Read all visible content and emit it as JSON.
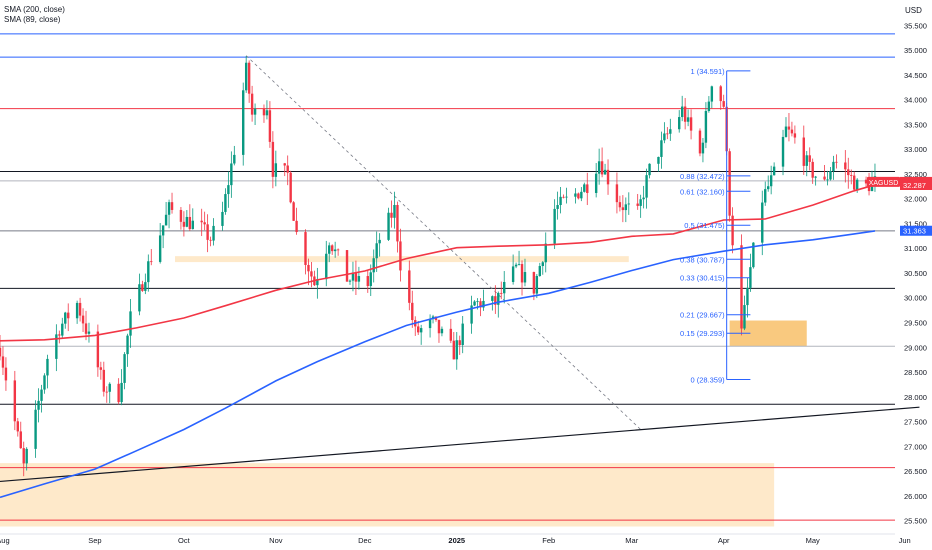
{
  "legend": [
    {
      "label": "SMA (200, close)"
    },
    {
      "label": "SMA (89, close)"
    }
  ],
  "currency": "USD",
  "colors": {
    "up": "#089981",
    "down": "#f23645",
    "sma200": "#2962ff",
    "sma89": "#f23645",
    "fib": "#2962ff",
    "zone": "#fde2b8",
    "zone_strong": "#f8c068",
    "symbol_badge": "#f23645",
    "sma200_badge": "#2962ff"
  },
  "chart_data": {
    "type": "candlestick",
    "symbol": "XAGUSD",
    "y_axis": {
      "min": 25.36,
      "max": 35.72,
      "ticks": [
        "25.500",
        "26.000",
        "26.500",
        "27.000",
        "27.500",
        "28.000",
        "28.500",
        "29.000",
        "29.500",
        "30.000",
        "30.500",
        "31.000",
        "31.500",
        "32.000",
        "32.500",
        "33.000",
        "33.500",
        "34.000",
        "34.500",
        "35.000",
        "35.500"
      ]
    },
    "x_axis": {
      "start": "2024-07-31",
      "end": "2025-05-31",
      "labels": [
        {
          "date": "2024-08-01",
          "label": "Aug"
        },
        {
          "date": "2024-09-01",
          "label": "Sep"
        },
        {
          "date": "2024-10-01",
          "label": "Oct"
        },
        {
          "date": "2024-11-01",
          "label": "Nov"
        },
        {
          "date": "2024-12-01",
          "label": "Dec"
        },
        {
          "date": "2025-01-01",
          "label": "2025"
        },
        {
          "date": "2025-02-01",
          "label": "Feb"
        },
        {
          "date": "2025-03-01",
          "label": "Mar"
        },
        {
          "date": "2025-04-01",
          "label": "Apr"
        },
        {
          "date": "2025-05-01",
          "label": "May"
        },
        {
          "date": "2025-06-01",
          "label": "Jun"
        }
      ]
    },
    "price_badges": [
      {
        "label": "XAGUSD",
        "value": "32.349",
        "price": 32.349,
        "style": "symbol"
      },
      {
        "value": "32.287",
        "price": 32.287,
        "style": "sma89"
      },
      {
        "value": "31.363",
        "price": 31.363,
        "style": "sma200"
      }
    ],
    "horizontal_lines": [
      {
        "price": 35.34,
        "color": "#2962ff",
        "from": "2024-07-31"
      },
      {
        "price": 34.87,
        "color": "#2962ff",
        "from": "2024-07-31"
      },
      {
        "price": 33.83,
        "color": "#f23645",
        "from": "2024-07-31"
      },
      {
        "price": 32.56,
        "color": "#131722",
        "from": "2024-07-31"
      },
      {
        "price": 32.37,
        "color": "#b2b5be",
        "from": "2024-07-31"
      },
      {
        "price": 31.36,
        "color": "#787b86",
        "from": "2024-07-31"
      },
      {
        "price": 30.2,
        "color": "#131722",
        "from": "2024-07-31"
      },
      {
        "price": 29.03,
        "color": "#b2b5be",
        "from": "2024-07-31"
      },
      {
        "price": 27.86,
        "color": "#131722",
        "from": "2024-07-31"
      },
      {
        "price": 26.58,
        "color": "#f23645",
        "from": "2024-07-31"
      },
      {
        "price": 25.52,
        "color": "#f23645",
        "from": "2024-07-31"
      }
    ],
    "zones": [
      {
        "from": "2024-07-31",
        "to": "2025-04-18",
        "price_top": 26.67,
        "price_bottom": 25.39,
        "style": "light"
      },
      {
        "from": "2024-09-28",
        "to": "2025-02-28",
        "price_top": 30.85,
        "price_bottom": 30.73,
        "style": "light"
      },
      {
        "from": "2025-04-03",
        "to": "2025-04-29",
        "price_top": 29.55,
        "price_bottom": 29.03,
        "style": "strong"
      }
    ],
    "trendlines": [
      {
        "from": [
          "2024-10-22",
          34.9
        ],
        "to": [
          "2025-03-04",
          27.35
        ],
        "style": "dashed",
        "color": "#787b86"
      },
      {
        "from": [
          "2024-07-31",
          26.3
        ],
        "to": [
          "2025-06-06",
          27.8
        ],
        "style": "solid",
        "color": "#131722"
      }
    ],
    "fibonacci": {
      "anchor_date": "2025-04-02",
      "end_date": "2025-04-10",
      "levels": [
        {
          "label": "1 (34.591)",
          "price": 34.591
        },
        {
          "label": "0.88 (32.472)",
          "price": 32.472
        },
        {
          "label": "0.61 (32.160)",
          "price": 32.16
        },
        {
          "label": "0.5 (31.475)",
          "price": 31.475
        },
        {
          "label": "0.38 (30.787)",
          "price": 30.787
        },
        {
          "label": "0.33 (30.415)",
          "price": 30.415
        },
        {
          "label": "0.21 (29.667)",
          "price": 29.667
        },
        {
          "label": "0.15 (29.293)",
          "price": 29.293
        },
        {
          "label": "0 (28.359)",
          "price": 28.359
        }
      ]
    },
    "series": [
      {
        "name": "SMA (200, close)",
        "type": "line",
        "points": [
          [
            "2024-07-31",
            25.98
          ],
          [
            "2024-08-15",
            26.25
          ],
          [
            "2024-09-01",
            26.55
          ],
          [
            "2024-09-15",
            26.92
          ],
          [
            "2024-10-01",
            27.35
          ],
          [
            "2024-10-15",
            27.78
          ],
          [
            "2024-11-01",
            28.33
          ],
          [
            "2024-11-15",
            28.72
          ],
          [
            "2024-12-01",
            29.12
          ],
          [
            "2024-12-15",
            29.45
          ],
          [
            "2025-01-01",
            29.72
          ],
          [
            "2025-01-15",
            29.92
          ],
          [
            "2025-02-01",
            30.1
          ],
          [
            "2025-02-15",
            30.32
          ],
          [
            "2025-03-01",
            30.56
          ],
          [
            "2025-03-15",
            30.78
          ],
          [
            "2025-04-01",
            30.95
          ],
          [
            "2025-04-15",
            31.08
          ],
          [
            "2025-05-01",
            31.18
          ],
          [
            "2025-05-15",
            31.3
          ],
          [
            "2025-05-22",
            31.36
          ]
        ]
      },
      {
        "name": "SMA (89, close)",
        "type": "line",
        "points": [
          [
            "2024-07-31",
            29.14
          ],
          [
            "2024-08-15",
            29.16
          ],
          [
            "2024-09-01",
            29.25
          ],
          [
            "2024-09-15",
            29.4
          ],
          [
            "2024-10-01",
            29.6
          ],
          [
            "2024-10-15",
            29.85
          ],
          [
            "2024-11-01",
            30.16
          ],
          [
            "2024-11-15",
            30.37
          ],
          [
            "2024-12-01",
            30.55
          ],
          [
            "2024-12-15",
            30.8
          ],
          [
            "2025-01-01",
            31.02
          ],
          [
            "2025-01-15",
            31.05
          ],
          [
            "2025-02-01",
            31.08
          ],
          [
            "2025-02-15",
            31.13
          ],
          [
            "2025-03-01",
            31.25
          ],
          [
            "2025-03-15",
            31.3
          ],
          [
            "2025-04-01",
            31.58
          ],
          [
            "2025-04-15",
            31.6
          ],
          [
            "2025-05-01",
            31.88
          ],
          [
            "2025-05-15",
            32.17
          ],
          [
            "2025-05-22",
            32.29
          ]
        ]
      },
      {
        "name": "XAGUSD",
        "type": "price_path",
        "points": [
          [
            "2024-07-31",
            29.0
          ],
          [
            "2024-08-05",
            27.5
          ],
          [
            "2024-08-08",
            26.6
          ],
          [
            "2024-08-12",
            27.6
          ],
          [
            "2024-08-16",
            28.8
          ],
          [
            "2024-08-20",
            29.4
          ],
          [
            "2024-08-26",
            29.9
          ],
          [
            "2024-08-30",
            29.2
          ],
          [
            "2024-09-04",
            28.2
          ],
          [
            "2024-09-09",
            28.05
          ],
          [
            "2024-09-13",
            29.6
          ],
          [
            "2024-09-18",
            30.5
          ],
          [
            "2024-09-26",
            31.8
          ],
          [
            "2024-10-01",
            31.6
          ],
          [
            "2024-10-07",
            31.4
          ],
          [
            "2024-10-10",
            31.2
          ],
          [
            "2024-10-14",
            31.7
          ],
          [
            "2024-10-18",
            33.0
          ],
          [
            "2024-10-22",
            34.6
          ],
          [
            "2024-10-24",
            33.7
          ],
          [
            "2024-10-29",
            33.9
          ],
          [
            "2024-10-31",
            32.6
          ],
          [
            "2024-11-05",
            32.5
          ],
          [
            "2024-11-08",
            31.3
          ],
          [
            "2024-11-14",
            30.3
          ],
          [
            "2024-11-19",
            31.2
          ],
          [
            "2024-11-25",
            30.4
          ],
          [
            "2024-12-02",
            30.3
          ],
          [
            "2024-12-06",
            31.2
          ],
          [
            "2024-12-11",
            31.8
          ],
          [
            "2024-12-13",
            30.7
          ],
          [
            "2024-12-18",
            29.3
          ],
          [
            "2024-12-24",
            29.5
          ],
          [
            "2024-12-31",
            28.9
          ],
          [
            "2025-01-07",
            29.9
          ],
          [
            "2025-01-14",
            29.9
          ],
          [
            "2025-01-21",
            30.6
          ],
          [
            "2025-01-27",
            30.2
          ],
          [
            "2025-02-03",
            31.8
          ],
          [
            "2025-02-10",
            32.1
          ],
          [
            "2025-02-14",
            32.3
          ],
          [
            "2025-02-18",
            32.8
          ],
          [
            "2025-02-25",
            31.9
          ],
          [
            "2025-03-03",
            31.7
          ],
          [
            "2025-03-07",
            32.6
          ],
          [
            "2025-03-12",
            33.2
          ],
          [
            "2025-03-18",
            33.8
          ],
          [
            "2025-03-24",
            32.9
          ],
          [
            "2025-03-28",
            34.4
          ],
          [
            "2025-04-01",
            33.9
          ],
          [
            "2025-04-03",
            31.8
          ],
          [
            "2025-04-07",
            29.3
          ],
          [
            "2025-04-10",
            30.6
          ],
          [
            "2025-04-14",
            32.0
          ],
          [
            "2025-04-18",
            32.5
          ],
          [
            "2025-04-22",
            33.4
          ],
          [
            "2025-04-25",
            33.2
          ],
          [
            "2025-04-30",
            32.6
          ],
          [
            "2025-05-05",
            32.3
          ],
          [
            "2025-05-08",
            32.8
          ],
          [
            "2025-05-13",
            32.5
          ],
          [
            "2025-05-17",
            32.2
          ],
          [
            "2025-05-22",
            32.35
          ]
        ]
      }
    ]
  }
}
